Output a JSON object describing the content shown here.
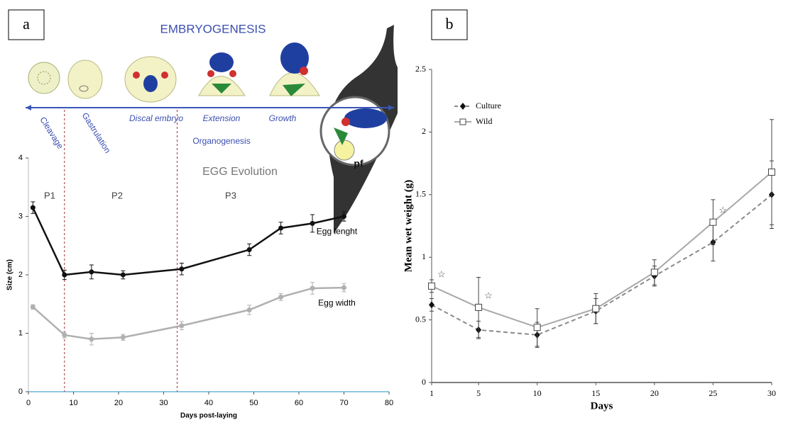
{
  "chart_data": [
    {
      "type": "line",
      "panel": "a",
      "x_label": "Days post-laying",
      "y_label": "Size (cm)",
      "xlim": [
        0,
        80
      ],
      "xticks": [
        0,
        10,
        20,
        30,
        40,
        50,
        60,
        70,
        80
      ],
      "ylim": [
        0,
        4
      ],
      "yticks": [
        0,
        1,
        2,
        3,
        4
      ],
      "vlines": [
        8,
        33
      ],
      "annotations": [
        "EMBRYOGENESIS",
        "Cleavage",
        "Gastrulation",
        "Discal embryo",
        "Extension",
        "Growth",
        "Organogenesis",
        "EGG Evolution",
        "P1",
        "P2",
        "P3",
        "pf"
      ],
      "x": [
        1,
        8,
        14,
        21,
        34,
        49,
        56,
        63,
        70
      ],
      "series": [
        {
          "name": "Egg lenght",
          "color": "#111111",
          "values": [
            3.15,
            2.0,
            2.05,
            2.0,
            2.1,
            2.43,
            2.8,
            2.88,
            3.0
          ],
          "errors": [
            0.1,
            0.08,
            0.12,
            0.07,
            0.1,
            0.1,
            0.1,
            0.15,
            0.08
          ]
        },
        {
          "name": "Egg width",
          "color": "#b0b0b0",
          "values": [
            1.45,
            0.97,
            0.9,
            0.93,
            1.13,
            1.4,
            1.62,
            1.77,
            1.78
          ],
          "errors": [
            0.04,
            0.05,
            0.1,
            0.05,
            0.07,
            0.08,
            0.06,
            0.1,
            0.07
          ]
        }
      ]
    },
    {
      "type": "line",
      "panel": "b",
      "x_label": "Days",
      "y_label": "Mean wet weight (g)",
      "xlim": [
        1,
        30
      ],
      "xticks": [
        1,
        5,
        10,
        15,
        20,
        25,
        30
      ],
      "ylim": [
        0,
        2.5
      ],
      "yticks": [
        0,
        0.5,
        1,
        1.5,
        2,
        2.5
      ],
      "x": [
        1,
        5,
        10,
        15,
        20,
        25,
        30
      ],
      "significance": {
        "label": "☆",
        "x": [
          1,
          5,
          25
        ]
      },
      "series": [
        {
          "name": "Culture",
          "color": "#8a8a8a",
          "values": [
            0.62,
            0.42,
            0.38,
            0.57,
            0.85,
            1.12,
            1.5
          ],
          "errors": [
            0.05,
            0.07,
            0.1,
            0.1,
            0.08,
            0.15,
            0.27
          ]
        },
        {
          "name": "Wild",
          "color": "#a8a8a8",
          "values": [
            0.77,
            0.6,
            0.44,
            0.59,
            0.88,
            1.28,
            1.68
          ],
          "errors": [
            0.05,
            0.24,
            0.15,
            0.12,
            0.1,
            0.18,
            0.42
          ]
        }
      ]
    }
  ]
}
